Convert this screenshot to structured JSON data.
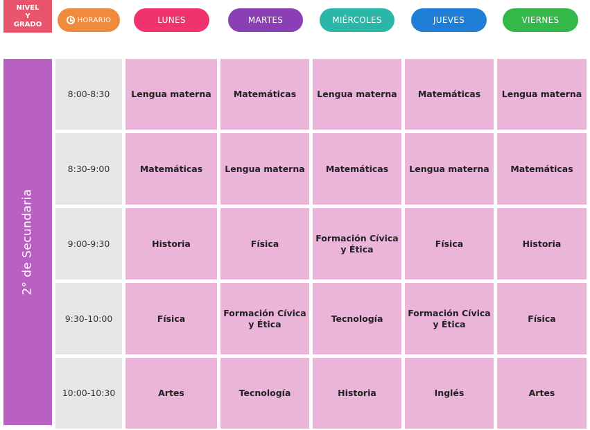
{
  "header": {
    "level_lines": [
      "NIVEL",
      "Y",
      "GRADO"
    ],
    "horario_label": "HORARIO",
    "days": [
      {
        "label": "LUNES",
        "color": "#f0326e"
      },
      {
        "label": "MARTES",
        "color": "#8a3fb4"
      },
      {
        "label": "MIÉRCOLES",
        "color": "#2ab7a8"
      },
      {
        "label": "JUEVES",
        "color": "#1f7fd6"
      },
      {
        "label": "VIERNES",
        "color": "#35b84a"
      }
    ]
  },
  "colors": {
    "level_box": "#e8546b",
    "horario_pill": "#f08a3c",
    "grade_bar": "#b960c3",
    "time_cell": "#e7e7e7",
    "subject_cell": "#ebb5da"
  },
  "grade": "2° de Secundaria",
  "rows": [
    {
      "time": "8:00-8:30",
      "subjects": [
        "Lengua materna",
        "Matemáticas",
        "Lengua materna",
        "Matemáticas",
        "Lengua materna"
      ]
    },
    {
      "time": "8:30-9:00",
      "subjects": [
        "Matemáticas",
        "Lengua materna",
        "Matemáticas",
        "Lengua materna",
        "Matemáticas"
      ]
    },
    {
      "time": "9:00-9:30",
      "subjects": [
        "Historia",
        "Física",
        "Formación Cívica\ny Ética",
        "Física",
        "Historia"
      ]
    },
    {
      "time": "9:30-10:00",
      "subjects": [
        "Física",
        "Formación Cívica\ny Ética",
        "Tecnología",
        "Formación Cívica\ny Ética",
        "Física"
      ]
    },
    {
      "time": "10:00-10:30",
      "subjects": [
        "Artes",
        "Tecnología",
        "Historia",
        "Inglés",
        "Artes"
      ]
    }
  ]
}
